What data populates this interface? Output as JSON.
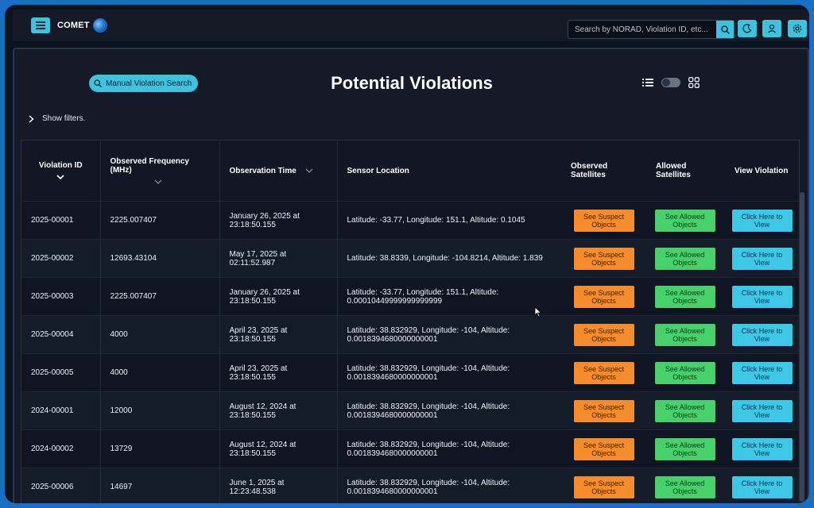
{
  "app": {
    "brand": "COMET"
  },
  "search": {
    "placeholder": "Search by NORAD, Violation ID, etc..."
  },
  "page": {
    "title": "Potential Violations",
    "manual_search_label": "Manual Violation Search",
    "show_filters_label": "Show filters."
  },
  "table": {
    "headers": {
      "violation_id": "Violation ID",
      "observed_frequency": "Observed Frequency (MHz)",
      "observation_time": "Observation Time",
      "sensor_location": "Sensor Location",
      "observed_satellites": "Observed Satellites",
      "allowed_satellites": "Allowed Satellites",
      "view_violation": "View Violation"
    },
    "buttons": {
      "suspect": "See Suspect Objects",
      "allowed": "See Allowed Objects",
      "view": "Click Here to View"
    },
    "rows": [
      {
        "id": "2025-00001",
        "freq": "2225.007407",
        "time": "January 26, 2025 at 23:18:50.155",
        "location": "Latitude: -33.77, Longitude: 151.1, Altitude: 0.1045"
      },
      {
        "id": "2025-00002",
        "freq": "12693.43104",
        "time": "May 17, 2025 at 02:11:52.987",
        "location": "Latitude: 38.8339, Longitude: -104.8214, Altitude: 1.839"
      },
      {
        "id": "2025-00003",
        "freq": "2225.007407",
        "time": "January 26, 2025 at 23:18:50.155",
        "location": "Latitude: -33.77, Longitude: 151.1, Altitude: 0.00010449999999999999"
      },
      {
        "id": "2025-00004",
        "freq": "4000",
        "time": "April 23, 2025 at 23:18:50.155",
        "location": "Latitude: 38.832929, Longitude: -104, Altitude: 0.0018394680000000001"
      },
      {
        "id": "2025-00005",
        "freq": "4000",
        "time": "April 23, 2025 at 23:18:50.155",
        "location": "Latitude: 38.832929, Longitude: -104, Altitude: 0.0018394680000000001"
      },
      {
        "id": "2024-00001",
        "freq": "12000",
        "time": "August 12, 2024 at 23:18:50.155",
        "location": "Latitude: 38.832929, Longitude: -104, Altitude: 0.0018394680000000001"
      },
      {
        "id": "2024-00002",
        "freq": "13729",
        "time": "August 12, 2024 at 23:18:50.155",
        "location": "Latitude: 38.832929, Longitude: -104, Altitude: 0.0018394680000000001"
      },
      {
        "id": "2025-00006",
        "freq": "14697",
        "time": "June 1, 2025 at 12:23:48.538",
        "location": "Latitude: 38.832929, Longitude: -104, Altitude: 0.0018394680000000001"
      }
    ]
  },
  "colors": {
    "accent": "#3ec2dd",
    "suspect_button": "#f58c2d",
    "allowed_button": "#48d16a",
    "view_button": "#3ec8e8",
    "background": "#0d1320"
  },
  "icons": [
    "menu-icon",
    "globe-logo-icon",
    "search-icon",
    "moon-icon",
    "user-icon",
    "gear-icon",
    "magnifier-icon",
    "list-view-icon",
    "grid-view-icon",
    "chevron-right-icon",
    "chevron-down-icon"
  ]
}
